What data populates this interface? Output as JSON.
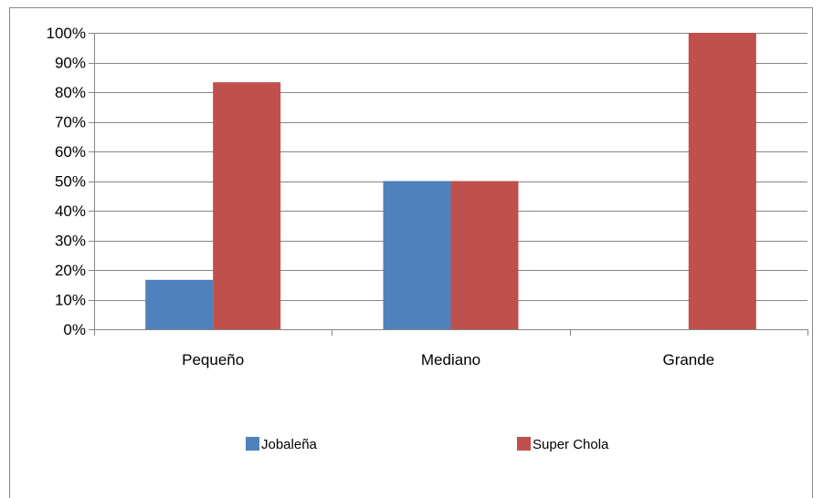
{
  "chart_data": {
    "type": "bar",
    "categories": [
      "Pequeño",
      "Mediano",
      "Grande"
    ],
    "series": [
      {
        "name": "Jobaleña",
        "values": [
          0.1667,
          0.5,
          0.0
        ],
        "color": "#4f81bd"
      },
      {
        "name": "Super Chola",
        "values": [
          0.8333,
          0.5,
          1.0
        ],
        "color": "#c0504d"
      }
    ],
    "ylim": [
      0,
      1
    ],
    "y_ticks": [
      0,
      0.1,
      0.2,
      0.3,
      0.4,
      0.5,
      0.6,
      0.7,
      0.8,
      0.9,
      1.0
    ],
    "y_tick_labels": [
      "0%",
      "10%",
      "20%",
      "30%",
      "40%",
      "50%",
      "60%",
      "70%",
      "80%",
      "90%",
      "100%"
    ],
    "grid": true,
    "legend_position": "bottom",
    "title": "",
    "xlabel": "",
    "ylabel": ""
  }
}
